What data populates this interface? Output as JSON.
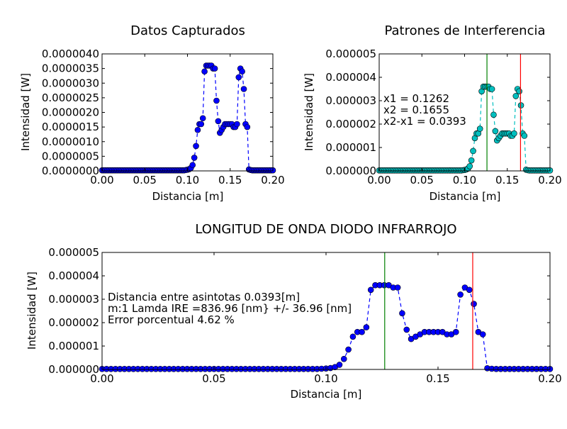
{
  "colors": {
    "blue": "#0000ff",
    "cyan": "#00bfbf",
    "green": "#008000",
    "red": "#ff0000",
    "axis": "#000000",
    "background": "#ffffff"
  },
  "chart_data": [
    {
      "type": "line",
      "title": "Datos Capturados",
      "xlabel": "Distancia [m]",
      "ylabel": "Intensidad [W]",
      "xlim": [
        0,
        0.2
      ],
      "ylim": [
        0,
        4e-06
      ],
      "xticks": [
        "0.00",
        "0.05",
        "0.10",
        "0.15",
        "0.20"
      ],
      "yticks": [
        "0.0000000",
        "0.0000005",
        "0.0000010",
        "0.0000015",
        "0.0000020",
        "0.0000025",
        "0.0000030",
        "0.0000035",
        "0.0000040"
      ],
      "grid": false,
      "series": [
        {
          "color": "blue",
          "style": "dashed line with circle markers",
          "x": [
            0.0,
            0.002,
            0.004,
            0.006,
            0.008,
            0.01,
            0.012,
            0.014,
            0.016,
            0.018,
            0.02,
            0.022,
            0.024,
            0.026,
            0.028,
            0.03,
            0.032,
            0.034,
            0.036,
            0.038,
            0.04,
            0.042,
            0.044,
            0.046,
            0.048,
            0.05,
            0.052,
            0.054,
            0.056,
            0.058,
            0.06,
            0.062,
            0.064,
            0.066,
            0.068,
            0.07,
            0.072,
            0.074,
            0.076,
            0.078,
            0.08,
            0.082,
            0.084,
            0.086,
            0.088,
            0.09,
            0.092,
            0.094,
            0.096,
            0.098,
            0.1,
            0.102,
            0.104,
            0.106,
            0.108,
            0.11,
            0.112,
            0.114,
            0.116,
            0.118,
            0.12,
            0.122,
            0.124,
            0.126,
            0.128,
            0.13,
            0.132,
            0.134,
            0.136,
            0.138,
            0.14,
            0.142,
            0.144,
            0.146,
            0.148,
            0.15,
            0.152,
            0.154,
            0.156,
            0.158,
            0.16,
            0.162,
            0.164,
            0.166,
            0.168,
            0.17,
            0.172,
            0.174,
            0.176,
            0.178,
            0.18,
            0.182,
            0.184,
            0.186,
            0.188,
            0.19,
            0.192,
            0.194,
            0.196,
            0.198,
            0.2
          ],
          "y": [
            2e-08,
            2e-08,
            2e-08,
            2e-08,
            2e-08,
            2e-08,
            2e-08,
            2e-08,
            2e-08,
            2e-08,
            2e-08,
            2e-08,
            2e-08,
            2e-08,
            2e-08,
            2e-08,
            2e-08,
            2e-08,
            2e-08,
            2e-08,
            2e-08,
            2e-08,
            2e-08,
            2e-08,
            2e-08,
            2e-08,
            2e-08,
            2e-08,
            2e-08,
            2e-08,
            2e-08,
            2e-08,
            2e-08,
            2e-08,
            2e-08,
            2e-08,
            2e-08,
            2e-08,
            2e-08,
            2e-08,
            2e-08,
            2e-08,
            2e-08,
            2e-08,
            2e-08,
            2e-08,
            2e-08,
            2e-08,
            2e-08,
            3e-08,
            4e-08,
            6e-08,
            1e-07,
            2e-07,
            4.5e-07,
            8.5e-07,
            1.4e-06,
            1.6e-06,
            1.6e-06,
            1.8e-06,
            3.4e-06,
            3.6e-06,
            3.6e-06,
            3.6e-06,
            3.6e-06,
            3.5e-06,
            3.5e-06,
            2.4e-06,
            1.7e-06,
            1.3e-06,
            1.4e-06,
            1.5e-06,
            1.6e-06,
            1.6e-06,
            1.6e-06,
            1.6e-06,
            1.6e-06,
            1.5e-06,
            1.5e-06,
            1.6e-06,
            3.2e-06,
            3.5e-06,
            3.4e-06,
            2.8e-06,
            1.6e-06,
            1.5e-06,
            5e-08,
            3e-08,
            2e-08,
            2e-08,
            2e-08,
            2e-08,
            2e-08,
            2e-08,
            2e-08,
            2e-08,
            2e-08,
            2e-08,
            2e-08,
            2e-08,
            2e-08
          ]
        }
      ]
    },
    {
      "type": "line",
      "title": "Patrones de Interferencia",
      "xlabel": "Distancia [m]",
      "ylabel": "Intensidad [W]",
      "xlim": [
        0,
        0.2
      ],
      "ylim": [
        0,
        5e-06
      ],
      "xticks": [
        "0.00",
        "0.05",
        "0.10",
        "0.15",
        "0.20"
      ],
      "yticks": [
        "0.000000",
        "0.000001",
        "0.000002",
        "0.000003",
        "0.000004",
        "0.000005"
      ],
      "grid": false,
      "vlines": [
        {
          "x": 0.1262,
          "color": "green"
        },
        {
          "x": 0.1655,
          "color": "red"
        }
      ],
      "annotations": [
        "x1 = 0.1262",
        "x2 = 0.1655",
        "x2-x1 = 0.0393"
      ],
      "series": [
        {
          "color": "cyan",
          "style": "dashed line with circle markers",
          "same_data_as": "Datos Capturados"
        }
      ]
    },
    {
      "type": "line",
      "title": "LONGITUD DE ONDA DIODO INFRARROJO",
      "xlabel": "Distancia [m]",
      "ylabel": "Intensidad [W]",
      "xlim": [
        0,
        0.2
      ],
      "ylim": [
        0,
        5e-06
      ],
      "xticks": [
        "0.00",
        "0.05",
        "0.10",
        "0.15",
        "0.20"
      ],
      "yticks": [
        "0.000000",
        "0.000001",
        "0.000002",
        "0.000003",
        "0.000004",
        "0.000005"
      ],
      "grid": false,
      "vlines": [
        {
          "x": 0.1262,
          "color": "green"
        },
        {
          "x": 0.1655,
          "color": "red"
        }
      ],
      "annotations": [
        "Distancia entre asintotas 0.0393[m]",
        "m:1 Lamda IRE =836.96 [nm} +/- 36.96 [nm]",
        "Error porcentual  4.62 %"
      ],
      "series": [
        {
          "color": "blue",
          "style": "dashed line with circle markers",
          "same_data_as": "Datos Capturados"
        }
      ]
    }
  ]
}
